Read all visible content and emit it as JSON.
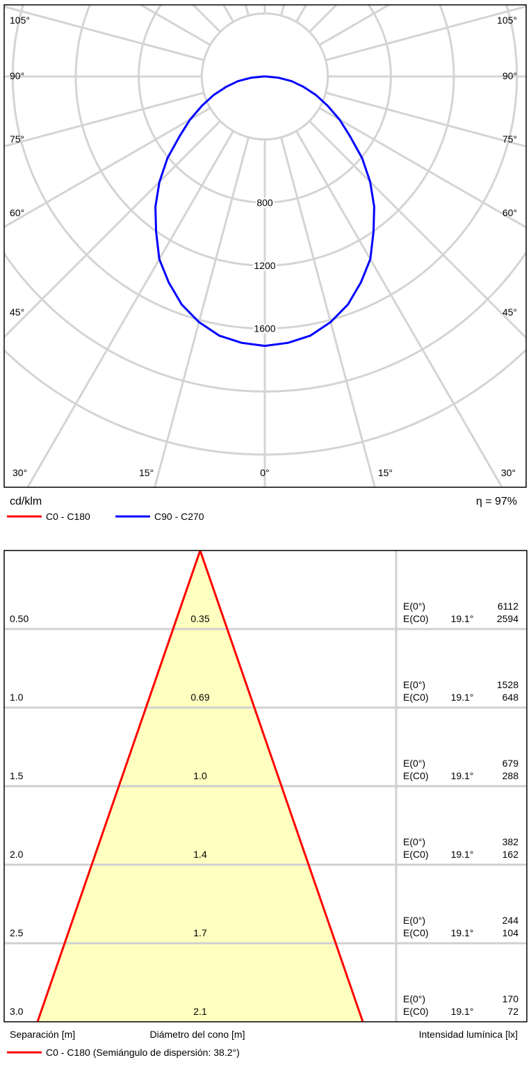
{
  "chart_data": [
    {
      "type": "polar",
      "unit_label": "cd/klm",
      "efficiency_text": "η = 97%",
      "angle_ticks_left": [
        "105°",
        "90°",
        "75°",
        "60°",
        "45°",
        "30°",
        "15°"
      ],
      "angle_ticks_right": [
        "105°",
        "90°",
        "75°",
        "60°",
        "45°",
        "30°",
        "15°"
      ],
      "angle_tick_bottom": "0°",
      "radial_ticks": [
        "800",
        "1200",
        "1600"
      ],
      "rmax": 2400,
      "grid": true,
      "series": [
        {
          "name": "C0 - C180",
          "color": "#ff0000",
          "gamma": [],
          "intensity": []
        },
        {
          "name": "C90 - C270",
          "color": "#0000ff",
          "gamma": [
            0,
            5,
            10,
            15,
            20,
            25,
            30,
            35,
            40,
            45,
            50,
            55,
            60,
            65,
            70,
            75,
            80,
            85,
            90
          ],
          "intensity": [
            1710,
            1697,
            1670,
            1614,
            1541,
            1443,
            1339,
            1203,
            1080,
            946,
            806,
            659,
            548,
            440,
            346,
            253,
            174,
            85,
            7
          ]
        }
      ]
    },
    {
      "type": "table",
      "columns": [
        "Separación [m]",
        "Diámetro del cono [m]",
        "Intensidad lumínica [lx]"
      ],
      "legend_text": "C0 - C180 (Semiángulo de dispersión: 38.2°)",
      "legend_color": "#ff0000",
      "fill_color": "#ffffc0",
      "rows": [
        {
          "separation": "0.50",
          "diameter": "0.35",
          "e0_label": "E(0°)",
          "e0": "6112",
          "ec0_label": "E(C0)",
          "angle": "19.1°",
          "ec0": "2594"
        },
        {
          "separation": "1.0",
          "diameter": "0.69",
          "e0_label": "E(0°)",
          "e0": "1528",
          "ec0_label": "E(C0)",
          "angle": "19.1°",
          "ec0": "648"
        },
        {
          "separation": "1.5",
          "diameter": "1.0",
          "e0_label": "E(0°)",
          "e0": "679",
          "ec0_label": "E(C0)",
          "angle": "19.1°",
          "ec0": "288"
        },
        {
          "separation": "2.0",
          "diameter": "1.4",
          "e0_label": "E(0°)",
          "e0": "382",
          "ec0_label": "E(C0)",
          "angle": "19.1°",
          "ec0": "162"
        },
        {
          "separation": "2.5",
          "diameter": "1.7",
          "e0_label": "E(0°)",
          "e0": "244",
          "ec0_label": "E(C0)",
          "angle": "19.1°",
          "ec0": "104"
        },
        {
          "separation": "3.0",
          "diameter": "2.1",
          "e0_label": "E(0°)",
          "e0": "170",
          "ec0_label": "E(C0)",
          "angle": "19.1°",
          "ec0": "72"
        }
      ]
    }
  ]
}
